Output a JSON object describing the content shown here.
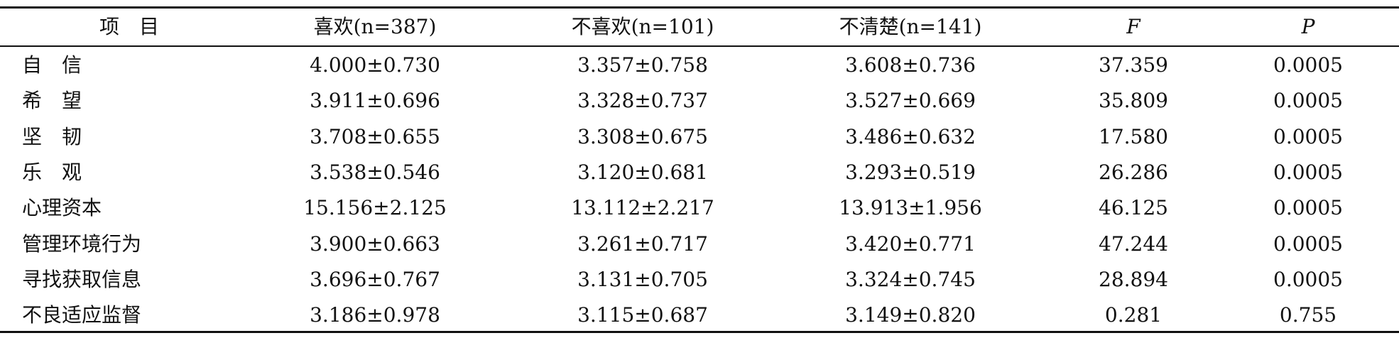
{
  "table": {
    "header": [
      "项　目",
      "喜欢(n=387)",
      "不喜欢(n=101)",
      "不清楚(n=141)",
      "F",
      "P"
    ],
    "rows": [
      [
        "自　信",
        "4.000±0.730",
        "3.357±0.758",
        "3.608±0.736",
        "37.359",
        "0.0005"
      ],
      [
        "希　望",
        "3.911±0.696",
        "3.328±0.737",
        "3.527±0.669",
        "35.809",
        "0.0005"
      ],
      [
        "坚　韧",
        "3.708±0.655",
        "3.308±0.675",
        "3.486±0.632",
        "17.580",
        "0.0005"
      ],
      [
        "乐　观",
        "3.538±0.546",
        "3.120±0.681",
        "3.293±0.519",
        "26.286",
        "0.0005"
      ],
      [
        "心理资本",
        "15.156±2.125",
        "13.112±2.217",
        "13.913±1.956",
        "46.125",
        "0.0005"
      ],
      [
        "管理环境行为",
        "3.900±0.663",
        "3.261±0.717",
        "3.420±0.771",
        "47.244",
        "0.0005"
      ],
      [
        "寻找获取信息",
        "3.696±0.767",
        "3.131±0.705",
        "3.324±0.745",
        "28.894",
        "0.0005"
      ],
      [
        "不良适应监督",
        "3.186±0.978",
        "3.115±0.687",
        "3.149±0.820",
        "0.281",
        "0.755"
      ]
    ]
  }
}
